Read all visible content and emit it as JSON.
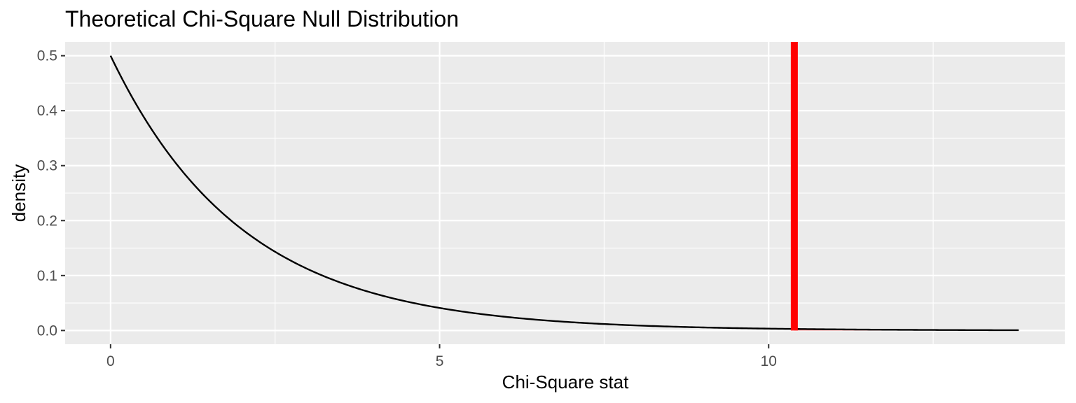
{
  "chart_data": {
    "type": "line",
    "title": "Theoretical Chi-Square Null Distribution",
    "xlabel": "Chi-Square stat",
    "ylabel": "density",
    "xlim": [
      -0.69,
      14.5
    ],
    "ylim": [
      -0.025,
      0.525
    ],
    "x_ticks": [
      0,
      5,
      10
    ],
    "x_tick_labels": [
      "0",
      "5",
      "10"
    ],
    "y_ticks": [
      0.0,
      0.1,
      0.2,
      0.3,
      0.4,
      0.5
    ],
    "y_tick_labels": [
      "0.0",
      "0.1",
      "0.2",
      "0.3",
      "0.4",
      "0.5"
    ],
    "grid": true,
    "distribution": {
      "family": "chi-square",
      "df": 2
    },
    "series": [
      {
        "color": "#000000",
        "x": [
          0,
          0.25,
          0.5,
          0.75,
          1,
          1.5,
          2,
          2.5,
          3,
          3.5,
          4,
          4.5,
          5,
          6,
          7,
          8,
          9,
          10,
          10.39,
          11,
          12,
          13,
          13.8
        ],
        "y": [
          0.5,
          0.441,
          0.389,
          0.344,
          0.303,
          0.236,
          0.184,
          0.143,
          0.112,
          0.087,
          0.068,
          0.053,
          0.041,
          0.025,
          0.015,
          0.009,
          0.006,
          0.003,
          0.003,
          0.002,
          0.001,
          0.001,
          0.0005
        ]
      }
    ],
    "vline": {
      "x": 10.39,
      "color": "#ff0000"
    },
    "shaded_region": {
      "from": 10.39,
      "to": 13.8,
      "color": "#ff0000"
    },
    "panel_background": "#ebebeb",
    "grid_color": "#ffffff"
  }
}
